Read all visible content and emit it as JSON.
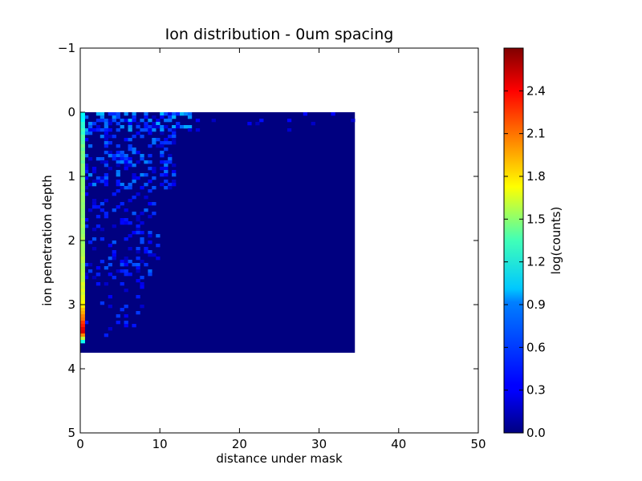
{
  "chart_data": {
    "type": "heatmap",
    "subtype": "hexbin",
    "title": "Ion distribution - 0um spacing",
    "xlabel": "distance under mask",
    "ylabel": "ion penetration depth",
    "xlim": [
      0,
      50
    ],
    "ylim": [
      5,
      -1
    ],
    "y_inverted": true,
    "x_ticks": [
      "0",
      "10",
      "20",
      "30",
      "40",
      "50"
    ],
    "y_ticks": [
      "−1",
      "0",
      "1",
      "2",
      "3",
      "4",
      "5"
    ],
    "grid": false,
    "colormap": "jet",
    "colorbar": {
      "label": "log(counts)",
      "range": [
        0.0,
        2.7
      ],
      "ticks": [
        "0.0",
        "0.3",
        "0.6",
        "0.9",
        "1.2",
        "1.5",
        "1.8",
        "2.1",
        "2.4"
      ]
    },
    "data_extent": {
      "x": [
        0.0,
        34.5
      ],
      "y": [
        0.0,
        3.75
      ]
    },
    "background_value": 0.0,
    "edge_column": {
      "x": 0.3,
      "profile": [
        {
          "y": 0.0,
          "value": 1.0
        },
        {
          "y": 0.5,
          "value": 1.3
        },
        {
          "y": 1.5,
          "value": 1.4
        },
        {
          "y": 2.5,
          "value": 1.5
        },
        {
          "y": 3.0,
          "value": 1.7
        },
        {
          "y": 3.3,
          "value": 2.3
        },
        {
          "y": 3.4,
          "value": 2.5
        },
        {
          "y": 3.55,
          "value": 1.0
        }
      ]
    },
    "scatter_density": {
      "note_free": true,
      "zones": [
        {
          "x": [
            0.5,
            14
          ],
          "y": [
            0.0,
            0.3
          ],
          "density": 0.55,
          "vmax": 0.85
        },
        {
          "x": [
            0.5,
            12
          ],
          "y": [
            0.3,
            1.2
          ],
          "density": 0.35,
          "vmax": 0.7
        },
        {
          "x": [
            0.5,
            10
          ],
          "y": [
            1.2,
            2.5
          ],
          "density": 0.2,
          "vmax": 0.6
        },
        {
          "x": [
            0.5,
            8
          ],
          "y": [
            2.5,
            3.5
          ],
          "density": 0.08,
          "vmax": 0.5
        },
        {
          "x": [
            14,
            35
          ],
          "y": [
            0.0,
            0.3
          ],
          "density": 0.05,
          "vmax": 0.45
        }
      ]
    }
  }
}
